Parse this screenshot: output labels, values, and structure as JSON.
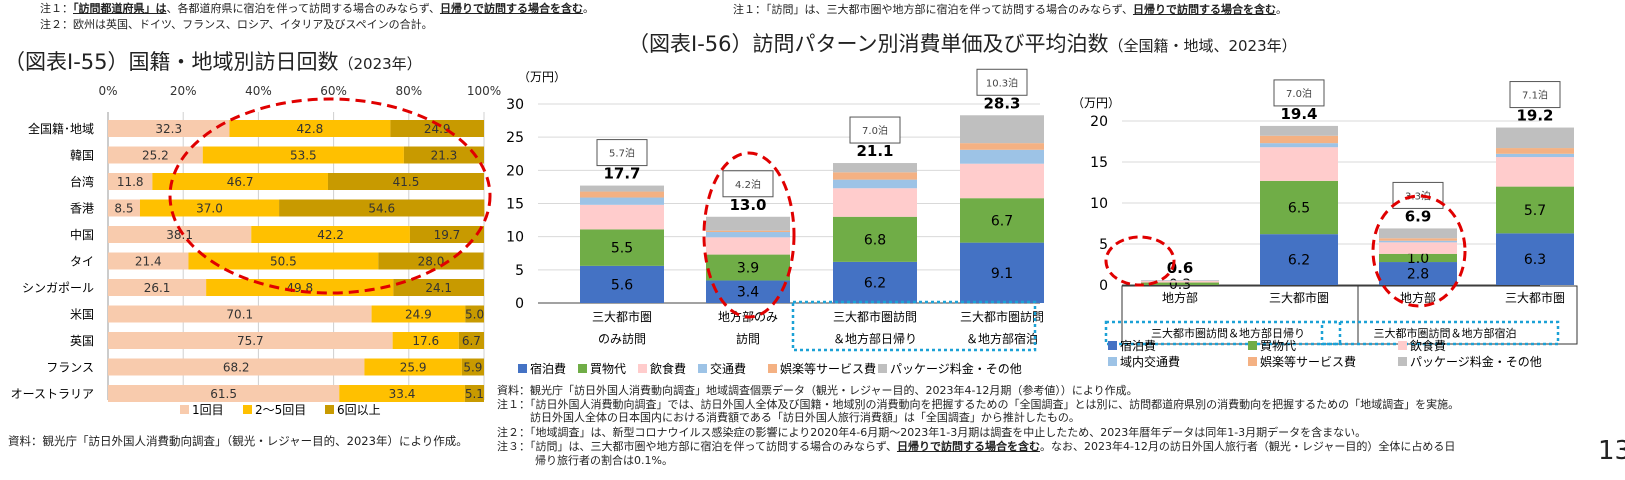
{
  "notes_top_left": [
    {
      "prefix": "注１：",
      "bold": "「訪問都道府県」は",
      "text": "、各都道府県に宿泊を伴って訪問する場合のみならず、",
      "underline": "日帰りで訪問する場合を含む",
      "end": "。"
    },
    {
      "prefix": "注２：",
      "text": "欧州は英国、ドイツ、フランス、ロシア、イタリア及びスペインの合計。"
    }
  ],
  "notes_top_right": {
    "prefix": "注１：",
    "text": "「訪問」は、三大都市圏や地方部に宿泊を伴って訪問する場合のみならず、",
    "underline": "日帰りで訪問する場合を含む",
    "end": "。"
  },
  "source_left": "資料：観光庁「訪日外国人消費動向調査」（観光・レジャー目的、2023年）により作成。",
  "notes_bottom": [
    "資料：観光庁「訪日外国人消費動向調査」地域調査個票データ（観光・レジャー目的、2023年4-12月期（参考値））により作成。",
    "注１：「訪日外国人消費動向調査」では、訪日外国人全体及び国籍・地域別の消費動向を把握するための「全国調査」とは別に、訪問都道府県別の消費動向を把握するための「地域調査」を実施。",
    "　　　訪日外国人全体の日本国内における消費額である「訪日外国人旅行消費額」は「全国調査」から推計したもの。",
    "注２：「地域調査」は、新型コロナウイルス感染症の影響により2020年4-6月期～2023年1-3月期は調査を中止したため、2023年暦年データは同年1-3月期データを含まない。"
  ],
  "note3": {
    "prefix": "注３：「訪問」は、三大都市圏や地方部に宿泊を伴って訪問する場合のみならず、",
    "underline": "日帰りで訪問する場合を含む",
    "text": "。なお、2023年4-12月の訪日外国人旅行者（観光・レジャー目的）全体に占める日",
    "text2": "帰り旅行者の割合は0.1%。"
  },
  "page_number": "13",
  "chart_data": [
    {
      "type": "bar",
      "orientation": "horizontal",
      "stacked": "percent",
      "title": "（図表Ⅰ-55）国籍・地域別訪日回数",
      "title_suffix": "（2023年）",
      "xlim": [
        0,
        100
      ],
      "xticks": [
        "0%",
        "20%",
        "40%",
        "60%",
        "80%",
        "100%"
      ],
      "grid": true,
      "legend": "bottom",
      "categories": [
        "全国籍･地域",
        "韓国",
        "台湾",
        "香港",
        "中国",
        "タイ",
        "シンガポール",
        "米国",
        "英国",
        "フランス",
        "オーストラリア"
      ],
      "series": [
        {
          "name": "1回目",
          "color": "#f8cbad",
          "values": [
            32.3,
            25.2,
            11.8,
            8.5,
            38.1,
            21.4,
            26.1,
            70.1,
            75.7,
            68.2,
            61.5
          ]
        },
        {
          "name": "2～5回目",
          "color": "#ffc000",
          "values": [
            42.8,
            53.5,
            46.7,
            37.0,
            42.2,
            50.5,
            49.8,
            24.9,
            17.6,
            25.9,
            33.4
          ]
        },
        {
          "name": "6回以上",
          "color": "#c89a00",
          "values": [
            24.9,
            21.3,
            41.5,
            54.6,
            19.7,
            28.0,
            24.1,
            5.0,
            6.7,
            5.9,
            5.1
          ]
        }
      ]
    },
    {
      "type": "bar",
      "stacked": true,
      "title": "（図表Ⅰ-56）訪問パターン別消費単価及び平均泊数",
      "title_suffix": "（全国籍・地域、2023年）",
      "ylabel": "（万円）",
      "ylim": [
        0,
        30
      ],
      "yticks": [
        0,
        5,
        10,
        15,
        20,
        25,
        30
      ],
      "grid": true,
      "legend": "bottom",
      "categories": [
        [
          "三大都市圏",
          "のみ訪問"
        ],
        [
          "地方部のみ",
          "訪問"
        ],
        [
          "三大都市圏訪問",
          "＆地方部日帰り"
        ],
        [
          "三大都市圏訪問",
          "＆地方部宿泊"
        ]
      ],
      "totals": [
        "17.7",
        "13.0",
        "21.1",
        "28.3"
      ],
      "nights": [
        "5.7泊",
        "4.2泊",
        "7.0泊",
        "10.3泊"
      ],
      "series": [
        {
          "name": "宿泊費",
          "color": "#4472c4",
          "values": [
            5.6,
            3.4,
            6.2,
            9.1
          ],
          "labeled": true
        },
        {
          "name": "買物代",
          "color": "#70ad47",
          "values": [
            5.5,
            3.9,
            6.8,
            6.7
          ],
          "labeled": true
        },
        {
          "name": "飲食費",
          "color": "#ffcccc",
          "values": [
            3.7,
            2.6,
            4.3,
            5.2
          ]
        },
        {
          "name": "交通費",
          "color": "#9dc3e6",
          "values": [
            1.1,
            0.8,
            1.3,
            2.1
          ]
        },
        {
          "name": "娯楽等サービス費",
          "color": "#f4b183",
          "values": [
            0.9,
            0.2,
            1.1,
            1.0
          ]
        },
        {
          "name": "パッケージ料金・その他",
          "color": "#bfbfbf",
          "values": [
            0.9,
            2.1,
            1.4,
            4.2
          ]
        }
      ]
    },
    {
      "type": "bar",
      "stacked": true,
      "ylabel": "（万円）",
      "ylim": [
        0,
        20
      ],
      "yticks": [
        0,
        5,
        10,
        15,
        20
      ],
      "grid": true,
      "legend": "bottom",
      "categories": [
        "地方部",
        "三大都市圏",
        "地方部",
        "三大都市圏"
      ],
      "groups": [
        "三大都市圏訪問＆地方部日帰り",
        "三大都市圏訪問＆地方部宿泊"
      ],
      "totals": [
        "0.6",
        "19.4",
        "6.9",
        "19.2"
      ],
      "nights": [
        "",
        "7.0泊",
        "3.3泊",
        "7.1泊"
      ],
      "series": [
        {
          "name": "宿泊費",
          "color": "#4472c4",
          "values": [
            0,
            6.2,
            2.8,
            6.3
          ],
          "labeled": true
        },
        {
          "name": "買物代",
          "color": "#70ad47",
          "values": [
            0.3,
            6.5,
            1.0,
            5.7
          ],
          "labeled": true
        },
        {
          "name": "飲食費",
          "color": "#ffcccc",
          "values": [
            0.2,
            4.1,
            1.4,
            3.6
          ]
        },
        {
          "name": "域内交通費",
          "color": "#9dc3e6",
          "values": [
            0.05,
            0.5,
            0.2,
            0.4
          ]
        },
        {
          "name": "娯楽等サービス費",
          "color": "#f4b183",
          "values": [
            0.03,
            0.9,
            0.3,
            0.7
          ]
        },
        {
          "name": "パッケージ料金・その他",
          "color": "#bfbfbf",
          "values": [
            0.02,
            1.2,
            1.2,
            2.5
          ]
        }
      ]
    }
  ],
  "highlight_color": "#e00000",
  "group_box_color": "#1ba1d6"
}
